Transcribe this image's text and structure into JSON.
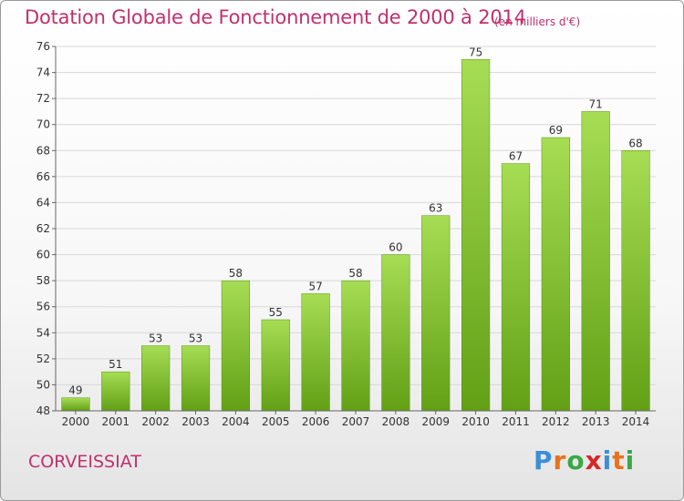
{
  "header": {
    "title": "Dotation Globale de Fonctionnement de 2000 à 2014",
    "unit": "(en milliers d'€)"
  },
  "footer": {
    "commune": "CORVEISSIAT",
    "logo": [
      "P",
      "r",
      "o",
      "x",
      "i",
      "t",
      "i"
    ]
  },
  "colors": {
    "title": "#c0306e",
    "bar_light": "#a6dd54",
    "bar_dark": "#62a016",
    "logo": [
      "#3b8fd6",
      "#e8721c",
      "#3aa845",
      "#d62828",
      "#3b8fd6",
      "#e8721c",
      "#3aa845"
    ]
  },
  "chart_data": {
    "type": "bar",
    "title": "Dotation Globale de Fonctionnement de 2000 à 2014",
    "subtitle": "(en milliers d'€)",
    "categories": [
      "2000",
      "2001",
      "2002",
      "2003",
      "2004",
      "2005",
      "2006",
      "2007",
      "2008",
      "2009",
      "2010",
      "2011",
      "2012",
      "2013",
      "2014"
    ],
    "values": [
      49,
      51,
      53,
      53,
      58,
      55,
      57,
      58,
      60,
      63,
      75,
      67,
      69,
      71,
      68
    ],
    "ylim": [
      48,
      76
    ],
    "yticks": [
      48,
      50,
      52,
      54,
      56,
      58,
      60,
      62,
      64,
      66,
      68,
      70,
      72,
      74,
      76
    ],
    "grid": true,
    "xlabel": "",
    "ylabel": ""
  }
}
